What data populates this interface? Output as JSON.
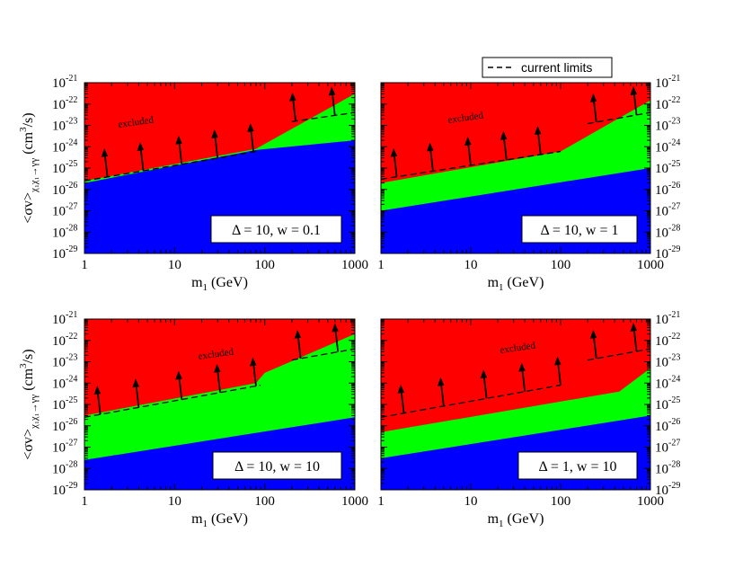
{
  "legend": {
    "label": "current limits"
  },
  "colors": {
    "excluded": "#ff0000",
    "allowed_band": "#00ff00",
    "lower_region": "#0000ff",
    "limit_line": "#000000"
  },
  "y_axis_label": "<σv>χ₁χ₁→γγ (cm³/s)",
  "chart_data": [
    {
      "type": "area",
      "x_scale": "log",
      "y_scale": "log",
      "xlim": [
        1,
        1000
      ],
      "ylim": [
        1e-29,
        1e-21
      ],
      "xlabel": "m1 (GeV)",
      "annotation": "excluded",
      "param_label": "Δ = 10,  w = 0.1",
      "green_upper": [
        [
          1,
          2.5e-26
        ],
        [
          80,
          8e-25
        ],
        [
          1000,
          3e-22
        ]
      ],
      "green_lower": [
        [
          1,
          2e-26
        ],
        [
          80,
          7e-25
        ],
        [
          1000,
          2e-24
        ]
      ],
      "limits": [
        {
          "x": [
            1,
            80
          ],
          "y": [
            2.5e-26,
            6e-25
          ]
        },
        {
          "x": [
            200,
            1000
          ],
          "y": [
            1.5e-23,
            4e-23
          ]
        }
      ],
      "arrow_x": [
        1.8,
        4.5,
        12,
        30,
        75,
        220,
        600
      ]
    },
    {
      "type": "area",
      "x_scale": "log",
      "y_scale": "log",
      "xlim": [
        1,
        1000
      ],
      "ylim": [
        1e-29,
        1e-21
      ],
      "xlabel": "m1 (GeV)",
      "annotation": "excluded",
      "param_label": "Δ = 10,  w = 1",
      "green_upper": [
        [
          1,
          2e-26
        ],
        [
          100,
          6e-25
        ],
        [
          1000,
          1.5e-22
        ]
      ],
      "green_lower": [
        [
          1,
          1e-27
        ],
        [
          1000,
          1e-25
        ]
      ],
      "limits": [
        {
          "x": [
            1,
            100
          ],
          "y": [
            3e-26,
            6e-25
          ]
        },
        {
          "x": [
            200,
            1000
          ],
          "y": [
            1.2e-23,
            4e-23
          ]
        }
      ],
      "arrow_x": [
        1.5,
        3.8,
        10,
        25,
        60,
        250,
        700
      ]
    },
    {
      "type": "area",
      "x_scale": "log",
      "y_scale": "log",
      "xlim": [
        1,
        1000
      ],
      "ylim": [
        1e-29,
        1e-21
      ],
      "xlabel": "m1 (GeV)",
      "annotation": "excluded",
      "param_label": "Δ = 10,  w = 10",
      "green_upper": [
        [
          1,
          3e-26
        ],
        [
          80,
          1e-24
        ],
        [
          100,
          3e-24
        ],
        [
          1000,
          2e-22
        ]
      ],
      "green_lower": [
        [
          1,
          2.5e-28
        ],
        [
          1000,
          2.5e-26
        ]
      ],
      "limits": [
        {
          "x": [
            1,
            90
          ],
          "y": [
            2.5e-26,
            8e-25
          ]
        },
        {
          "x": [
            200,
            1000
          ],
          "y": [
            1.2e-23,
            4e-23
          ]
        }
      ],
      "arrow_x": [
        1.5,
        4,
        12,
        32,
        80,
        250,
        650
      ]
    },
    {
      "type": "area",
      "x_scale": "log",
      "y_scale": "log",
      "xlim": [
        1,
        1000
      ],
      "ylim": [
        1e-29,
        1e-21
      ],
      "xlabel": "m1 (GeV)",
      "annotation": "excluded",
      "param_label": "Δ = 1,  w = 10",
      "green_upper": [
        [
          1,
          5e-27
        ],
        [
          450,
          4e-25
        ],
        [
          1000,
          5e-24
        ]
      ],
      "green_lower": [
        [
          1,
          3e-28
        ],
        [
          1000,
          3e-26
        ]
      ],
      "limits": [
        {
          "x": [
            1,
            100
          ],
          "y": [
            2.5e-26,
            8e-25
          ]
        },
        {
          "x": [
            200,
            1000
          ],
          "y": [
            1.2e-23,
            4e-23
          ]
        }
      ],
      "arrow_x": [
        1.8,
        5,
        15,
        40,
        100,
        250,
        700
      ]
    }
  ]
}
